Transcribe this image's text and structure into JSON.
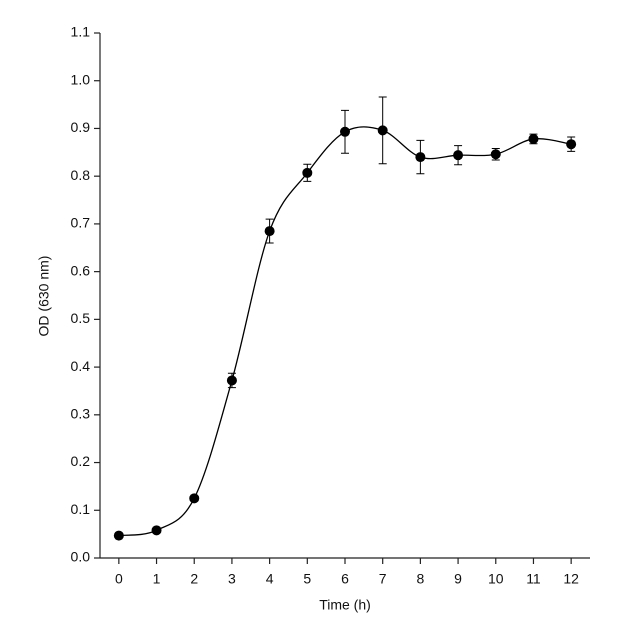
{
  "chart_data": {
    "type": "line",
    "xlabel": "Time (h)",
    "ylabel": "OD (630 nm)",
    "x": [
      0,
      1,
      2,
      3,
      4,
      5,
      6,
      7,
      8,
      9,
      10,
      11,
      12
    ],
    "values": [
      0.047,
      0.058,
      0.125,
      0.372,
      0.685,
      0.807,
      0.893,
      0.896,
      0.84,
      0.844,
      0.846,
      0.878,
      0.867
    ],
    "errors": [
      0.003,
      0.004,
      0.005,
      0.015,
      0.025,
      0.018,
      0.045,
      0.07,
      0.035,
      0.02,
      0.012,
      0.01,
      0.015
    ],
    "color": "#000000",
    "xlim": [
      -0.5,
      12.5
    ],
    "xticks": [
      0,
      1,
      2,
      3,
      4,
      5,
      6,
      7,
      8,
      9,
      10,
      11,
      12
    ],
    "ylim": [
      0,
      1.1
    ],
    "yticks": [
      {
        "value": 0,
        "label": "0.0"
      },
      0.1,
      0.2,
      0.3,
      0.4,
      0.5,
      0.6,
      0.7,
      0.8,
      0.9,
      {
        "value": 1,
        "label": "1.0"
      },
      1.1
    ]
  }
}
